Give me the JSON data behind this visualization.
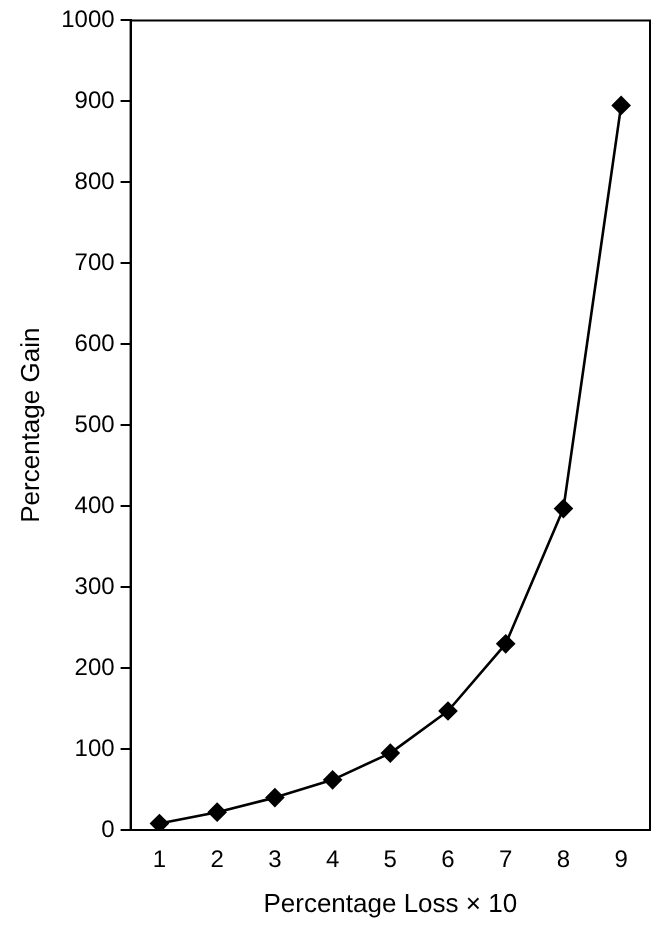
{
  "chart_data": {
    "type": "line",
    "xlabel": "Percentage Loss × 10",
    "ylabel": "Percentage Gain",
    "categories": [
      "1",
      "2",
      "3",
      "4",
      "5",
      "6",
      "7",
      "8",
      "9"
    ],
    "series": [
      {
        "color": "#000000",
        "values": [
          8,
          22,
          40,
          62,
          95,
          147,
          230,
          397,
          895
        ]
      }
    ],
    "ylim": [
      0,
      1000
    ],
    "yticks": [
      0,
      100,
      200,
      300,
      400,
      500,
      600,
      700,
      800,
      900,
      1000
    ],
    "grid": false,
    "legend": false,
    "marker": "diamond",
    "line_style": "solid"
  }
}
